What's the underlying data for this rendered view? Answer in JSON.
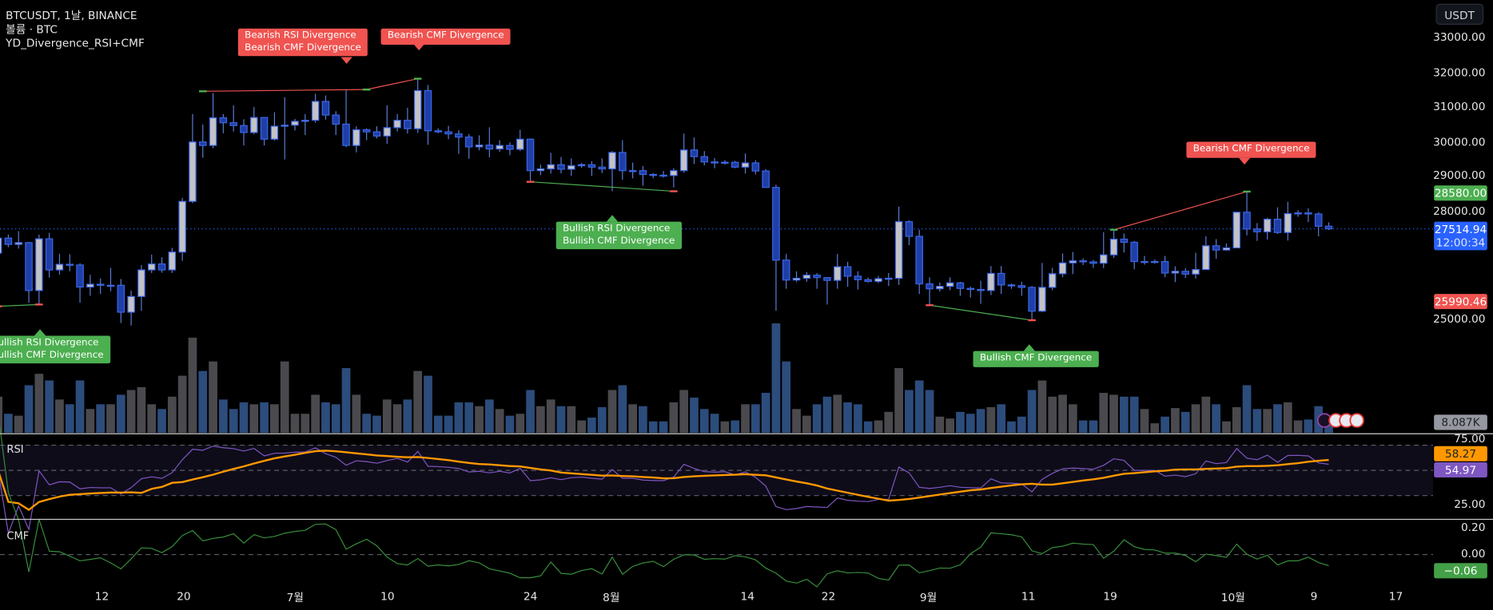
{
  "legend": {
    "symbol_line": "BTCUSDT, 1날, BINANCE",
    "volume_line": "볼륨 · BTC",
    "indicator_line": "YD_Divergence_RSI+CMF"
  },
  "price_axis": {
    "unit_button": "USDT",
    "ticks": [
      "33000.00",
      "32000.00",
      "31000.00",
      "30000.00",
      "29000.00",
      "28000.00",
      "25000.00"
    ],
    "badges": {
      "high": "28580.00",
      "last_price": "27514.94",
      "countdown": "12:00:34",
      "low": "25990.46",
      "volume": "8.087K"
    }
  },
  "rsi_pane": {
    "title": "RSI",
    "ticks": [
      "75.00",
      "25.00"
    ],
    "ma_value": "58.27",
    "rsi_value": "54.97"
  },
  "cmf_pane": {
    "title": "CMF",
    "ticks": [
      "0.20",
      "0.00"
    ],
    "value": "−0.06"
  },
  "x_axis": {
    "ticks": [
      "12",
      "20",
      "7월",
      "10",
      "24",
      "8월",
      "14",
      "22",
      "9월",
      "11",
      "19",
      "10월",
      "9",
      "17"
    ]
  },
  "divergence_labels": [
    {
      "type": "bearish",
      "lines": [
        "Bearish RSI Divergence",
        "Bearish CMF Divergence"
      ]
    },
    {
      "type": "bearish",
      "lines": [
        "Bearish CMF Divergence"
      ]
    },
    {
      "type": "bullish",
      "lines": [
        "Bullish RSI Divergence",
        "Bullish CMF Divergence"
      ]
    },
    {
      "type": "bullish",
      "lines": [
        "Bullish RSI Divergence",
        "Bullish CMF Divergence"
      ]
    },
    {
      "type": "bullish",
      "lines": [
        "Bullish CMF Divergence"
      ]
    },
    {
      "type": "bearish",
      "lines": [
        "Bearish CMF Divergence"
      ]
    }
  ],
  "colors": {
    "up_body": "#c3c3c7",
    "down_body": "#1f3fa8",
    "candle_border": "#3b66e6",
    "volume_up": "#4a4a4e",
    "volume_down": "#2c4c7c",
    "bearish": "#f05350",
    "bullish": "#4caf50",
    "rsi": "#7e57c2",
    "rsi_ma": "#ff9800",
    "cmf": "#388e3c",
    "last_price": "#2962ff"
  },
  "chart_data": {
    "type": "candlestick",
    "symbol": "BTCUSDT",
    "interval": "1날",
    "exchange": "BINANCE",
    "ylim": [
      24700,
      33300
    ],
    "columns": [
      "date",
      "open",
      "high",
      "low",
      "close",
      "volume_k"
    ],
    "candles": [
      [
        "06-02",
        26820,
        27300,
        26500,
        27250,
        38
      ],
      [
        "06-03",
        27250,
        27350,
        26990,
        27070,
        20
      ],
      [
        "06-04",
        27070,
        27450,
        26950,
        27120,
        18
      ],
      [
        "06-05",
        27120,
        27140,
        25400,
        25750,
        50
      ],
      [
        "06-06",
        25750,
        27350,
        25350,
        27230,
        62
      ],
      [
        "06-07",
        27230,
        27400,
        26120,
        26340,
        55
      ],
      [
        "06-08",
        26340,
        26800,
        26200,
        26500,
        35
      ],
      [
        "06-09",
        26500,
        26790,
        26300,
        26480,
        30
      ],
      [
        "06-10",
        26480,
        26530,
        25400,
        25850,
        55
      ],
      [
        "06-11",
        25850,
        26200,
        25600,
        25930,
        25
      ],
      [
        "06-12",
        25930,
        26100,
        25650,
        25900,
        30
      ],
      [
        "06-13",
        25900,
        26400,
        25730,
        25900,
        30
      ],
      [
        "06-14",
        25900,
        26080,
        24820,
        25130,
        40
      ],
      [
        "06-15",
        25130,
        25750,
        24750,
        25580,
        45
      ],
      [
        "06-16",
        25580,
        26480,
        25170,
        26340,
        48
      ],
      [
        "06-17",
        26340,
        26780,
        26250,
        26510,
        30
      ],
      [
        "06-18",
        26510,
        26700,
        26260,
        26340,
        25
      ],
      [
        "06-19",
        26340,
        26970,
        26250,
        26850,
        38
      ],
      [
        "06-20",
        26850,
        28400,
        26600,
        28300,
        60
      ],
      [
        "06-21",
        28300,
        30800,
        28250,
        30000,
        100
      ],
      [
        "06-22",
        30000,
        30500,
        29550,
        29900,
        65
      ],
      [
        "06-23",
        29900,
        31400,
        29820,
        30690,
        75
      ],
      [
        "06-24",
        30690,
        30800,
        30250,
        30550,
        35
      ],
      [
        "06-25",
        30550,
        31050,
        30300,
        30470,
        25
      ],
      [
        "06-26",
        30470,
        30650,
        29900,
        30270,
        32
      ],
      [
        "06-27",
        30270,
        31000,
        30220,
        30700,
        30
      ],
      [
        "06-28",
        30700,
        30700,
        29900,
        30080,
        32
      ],
      [
        "06-29",
        30080,
        30850,
        30040,
        30450,
        30
      ],
      [
        "06-30",
        30450,
        31280,
        29500,
        30480,
        75
      ],
      [
        "07-01",
        30480,
        30660,
        30330,
        30590,
        20
      ],
      [
        "07-02",
        30590,
        30800,
        30200,
        30620,
        20
      ],
      [
        "07-03",
        30620,
        31380,
        30550,
        31160,
        40
      ],
      [
        "07-04",
        31160,
        31330,
        30640,
        30770,
        32
      ],
      [
        "07-05",
        30770,
        30880,
        30200,
        30510,
        30
      ],
      [
        "07-06",
        30510,
        31500,
        29850,
        29900,
        68
      ],
      [
        "07-07",
        29900,
        30450,
        29700,
        30350,
        40
      ],
      [
        "07-08",
        30350,
        30390,
        30050,
        30290,
        20
      ],
      [
        "07-09",
        30290,
        30450,
        30100,
        30170,
        18
      ],
      [
        "07-10",
        30170,
        31050,
        29950,
        30410,
        35
      ],
      [
        "07-11",
        30410,
        30800,
        30300,
        30620,
        30
      ],
      [
        "07-12",
        30620,
        30980,
        30240,
        30380,
        35
      ],
      [
        "07-13",
        30380,
        31810,
        30260,
        31470,
        65
      ],
      [
        "07-14",
        31470,
        31630,
        29920,
        30320,
        60
      ],
      [
        "07-15",
        30320,
        30390,
        30250,
        30290,
        18
      ],
      [
        "07-16",
        30290,
        30460,
        30080,
        30230,
        18
      ],
      [
        "07-17",
        30230,
        30340,
        29660,
        30140,
        32
      ],
      [
        "07-18",
        30140,
        30230,
        29520,
        29860,
        32
      ],
      [
        "07-19",
        29860,
        30190,
        29760,
        29910,
        28
      ],
      [
        "07-20",
        29910,
        30420,
        29560,
        29800,
        35
      ],
      [
        "07-21",
        29800,
        30050,
        29720,
        29900,
        25
      ],
      [
        "07-22",
        29900,
        29990,
        29620,
        29790,
        18
      ],
      [
        "07-23",
        29790,
        30350,
        29740,
        30080,
        20
      ],
      [
        "07-24",
        30080,
        30100,
        28860,
        29180,
        45
      ],
      [
        "07-25",
        29180,
        29350,
        29050,
        29230,
        28
      ],
      [
        "07-26",
        29230,
        29690,
        29100,
        29350,
        35
      ],
      [
        "07-27",
        29350,
        29570,
        29100,
        29220,
        28
      ],
      [
        "07-28",
        29220,
        29530,
        29030,
        29320,
        28
      ],
      [
        "07-29",
        29320,
        29400,
        29260,
        29350,
        13
      ],
      [
        "07-30",
        29350,
        29450,
        29030,
        29280,
        16
      ],
      [
        "07-31",
        29280,
        29530,
        29110,
        29230,
        27
      ],
      [
        "08-01",
        29230,
        29740,
        28590,
        29700,
        45
      ],
      [
        "08-02",
        29700,
        30050,
        28920,
        29180,
        50
      ],
      [
        "08-03",
        29180,
        29410,
        28960,
        29180,
        30
      ],
      [
        "08-04",
        29180,
        29310,
        28750,
        29070,
        28
      ],
      [
        "08-05",
        29070,
        29110,
        28960,
        29050,
        12
      ],
      [
        "08-06",
        29050,
        29170,
        28980,
        29040,
        12
      ],
      [
        "08-07",
        29040,
        29250,
        28700,
        29180,
        32
      ],
      [
        "08-08",
        29180,
        30240,
        29120,
        29770,
        45
      ],
      [
        "08-09",
        29770,
        30130,
        29370,
        29580,
        37
      ],
      [
        "08-10",
        29580,
        29740,
        29330,
        29430,
        25
      ],
      [
        "08-11",
        29430,
        29540,
        29250,
        29400,
        20
      ],
      [
        "08-12",
        29400,
        29480,
        29350,
        29420,
        12
      ],
      [
        "08-13",
        29420,
        29460,
        29250,
        29280,
        13
      ],
      [
        "08-14",
        29280,
        29670,
        29100,
        29400,
        30
      ],
      [
        "08-15",
        29400,
        29480,
        29070,
        29170,
        30
      ],
      [
        "08-16",
        29170,
        29220,
        28700,
        28700,
        42
      ],
      [
        "08-17",
        28700,
        28780,
        25170,
        26620,
        115
      ],
      [
        "08-18",
        26620,
        26800,
        25800,
        26050,
        75
      ],
      [
        "08-19",
        26050,
        26300,
        25990,
        26100,
        25
      ],
      [
        "08-20",
        26100,
        26280,
        26000,
        26190,
        18
      ],
      [
        "08-21",
        26190,
        26250,
        25800,
        26120,
        30
      ],
      [
        "08-22",
        26120,
        26130,
        25350,
        26040,
        38
      ],
      [
        "08-23",
        26040,
        26800,
        25800,
        26430,
        40
      ],
      [
        "08-24",
        26430,
        26570,
        25860,
        26160,
        32
      ],
      [
        "08-25",
        26160,
        26300,
        25780,
        26060,
        30
      ],
      [
        "08-26",
        26060,
        26120,
        25980,
        26010,
        12
      ],
      [
        "08-27",
        26010,
        26170,
        25960,
        26090,
        13
      ],
      [
        "08-28",
        26090,
        26250,
        25880,
        26100,
        22
      ],
      [
        "08-29",
        26100,
        28150,
        25910,
        27720,
        68
      ],
      [
        "08-30",
        27720,
        27760,
        27050,
        27300,
        45
      ],
      [
        "08-31",
        27300,
        27490,
        25650,
        25940,
        55
      ],
      [
        "09-01",
        25940,
        26130,
        25330,
        25800,
        45
      ],
      [
        "09-02",
        25800,
        25980,
        25720,
        25870,
        17
      ],
      [
        "09-03",
        25870,
        26130,
        25760,
        25970,
        15
      ],
      [
        "09-04",
        25970,
        26000,
        25600,
        25810,
        22
      ],
      [
        "09-05",
        25810,
        25860,
        25550,
        25780,
        20
      ],
      [
        "09-06",
        25780,
        26030,
        25370,
        25750,
        25
      ],
      [
        "09-07",
        25750,
        26450,
        25620,
        26240,
        27
      ],
      [
        "09-08",
        26240,
        26450,
        25650,
        25910,
        30
      ],
      [
        "09-09",
        25910,
        25950,
        25800,
        25890,
        12
      ],
      [
        "09-10",
        25890,
        26000,
        25600,
        25840,
        17
      ],
      [
        "09-11",
        25840,
        25880,
        24900,
        25160,
        45
      ],
      [
        "09-12",
        25160,
        26540,
        25130,
        25840,
        55
      ],
      [
        "09-13",
        25840,
        26400,
        25760,
        26230,
        38
      ],
      [
        "09-14",
        26230,
        26810,
        26130,
        26540,
        40
      ],
      [
        "09-15",
        26540,
        26850,
        26220,
        26600,
        30
      ],
      [
        "09-16",
        26600,
        26670,
        26480,
        26570,
        13
      ],
      [
        "09-17",
        26570,
        26630,
        26400,
        26530,
        13
      ],
      [
        "09-18",
        26530,
        27420,
        26390,
        26770,
        42
      ],
      [
        "09-19",
        26770,
        27490,
        26680,
        27220,
        40
      ],
      [
        "09-20",
        27220,
        27380,
        26840,
        27130,
        38
      ],
      [
        "09-21",
        27130,
        27170,
        26360,
        26580,
        38
      ],
      [
        "09-22",
        26580,
        26740,
        26490,
        26580,
        25
      ],
      [
        "09-23",
        26580,
        26640,
        26520,
        26580,
        10
      ],
      [
        "09-24",
        26580,
        26740,
        26130,
        26250,
        17
      ],
      [
        "09-25",
        26250,
        26440,
        25990,
        26300,
        26
      ],
      [
        "09-26",
        26300,
        26390,
        26110,
        26220,
        22
      ],
      [
        "09-27",
        26220,
        26830,
        26090,
        26350,
        30
      ],
      [
        "09-28",
        26350,
        27300,
        26340,
        27030,
        38
      ],
      [
        "09-29",
        27030,
        27220,
        26660,
        26910,
        30
      ],
      [
        "09-30",
        26910,
        27100,
        26890,
        26970,
        12
      ],
      [
        "10-01",
        26970,
        28000,
        26970,
        27990,
        27
      ],
      [
        "10-02",
        27990,
        28580,
        27330,
        27510,
        50
      ],
      [
        "10-03",
        27510,
        27680,
        27170,
        27430,
        25
      ],
      [
        "10-04",
        27430,
        27830,
        27210,
        27790,
        25
      ],
      [
        "10-05",
        27790,
        28130,
        27370,
        27410,
        30
      ],
      [
        "10-06",
        27410,
        28290,
        27180,
        27950,
        32
      ],
      [
        "10-07",
        27950,
        28050,
        27860,
        27970,
        13
      ],
      [
        "10-08",
        27970,
        28100,
        27710,
        27940,
        14
      ],
      [
        "10-09",
        27940,
        27990,
        27300,
        27590,
        28
      ],
      [
        "10-10",
        27590,
        27700,
        27480,
        27514.94,
        8.087
      ]
    ],
    "divergence_lines": [
      {
        "type": "bearish",
        "from": [
          "06-22",
          31450
        ],
        "to": [
          "07-08",
          31500
        ]
      },
      {
        "type": "bearish",
        "from": [
          "07-08",
          31500
        ],
        "to": [
          "07-13",
          31810
        ]
      },
      {
        "type": "bullish",
        "from": [
          "06-02",
          25300
        ],
        "to": [
          "06-06",
          25350
        ]
      },
      {
        "type": "bullish",
        "from": [
          "07-24",
          28860
        ],
        "to": [
          "08-07",
          28590
        ]
      },
      {
        "type": "bullish",
        "from": [
          "09-01",
          25330
        ],
        "to": [
          "09-11",
          24900
        ]
      },
      {
        "type": "bearish",
        "from": [
          "09-19",
          27490
        ],
        "to": [
          "10-02",
          28580
        ]
      }
    ],
    "rsi": {
      "length": 14,
      "ma_length": 14,
      "upper": 70,
      "lower": 30,
      "axis": [
        25,
        75
      ]
    },
    "cmf": {
      "length": 20,
      "axis": [
        -0.2,
        0.2
      ]
    }
  }
}
